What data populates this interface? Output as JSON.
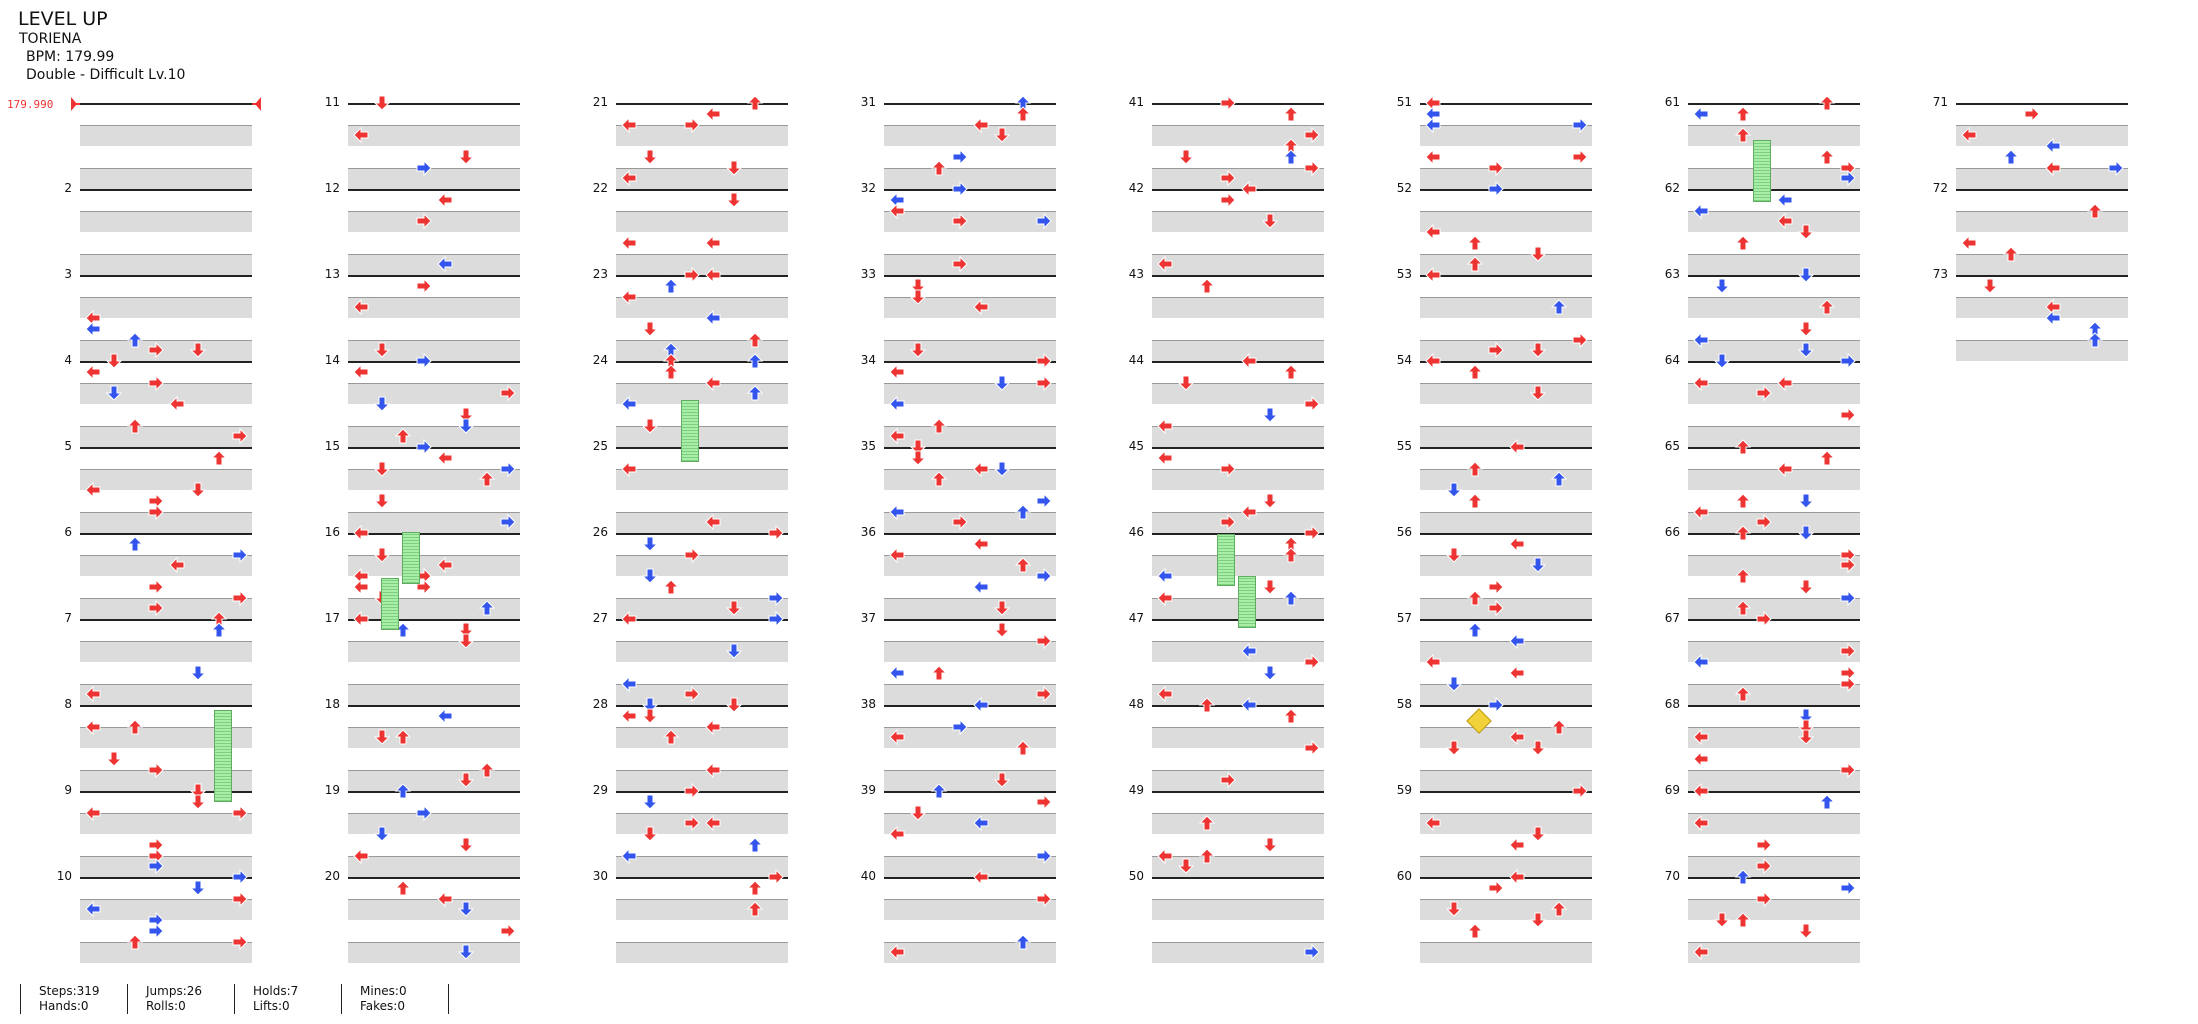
{
  "header": {
    "title": "LEVEL UP",
    "artist": "TORIENA",
    "bpm": "BPM: 179.99",
    "difficulty": "Double - Difficult Lv.10"
  },
  "bpm_marker": "179.990",
  "colors": {
    "red": "#ee3333",
    "blue": "#3355ee",
    "hold": "#9be89b",
    "mine": "#f2d23a"
  },
  "columns": [
    {
      "measures": [
        "",
        "2",
        "3",
        "4",
        "5",
        "6",
        "7",
        "8",
        "9",
        "10"
      ]
    },
    {
      "measures": [
        "11",
        "12",
        "13",
        "14",
        "15",
        "16",
        "17",
        "18",
        "19",
        "20"
      ]
    },
    {
      "measures": [
        "21",
        "22",
        "23",
        "24",
        "25",
        "26",
        "27",
        "28",
        "29",
        "30"
      ]
    },
    {
      "measures": [
        "31",
        "32",
        "33",
        "34",
        "35",
        "36",
        "37",
        "38",
        "39",
        "40"
      ]
    },
    {
      "measures": [
        "41",
        "42",
        "43",
        "44",
        "45",
        "46",
        "47",
        "48",
        "49",
        "50"
      ]
    },
    {
      "measures": [
        "51",
        "52",
        "53",
        "54",
        "55",
        "56",
        "57",
        "58",
        "59",
        "60"
      ]
    },
    {
      "measures": [
        "61",
        "62",
        "63",
        "64",
        "65",
        "66",
        "67",
        "68",
        "69",
        "70"
      ]
    },
    {
      "measures": [
        "71",
        "72",
        "73"
      ]
    }
  ],
  "stats": {
    "steps": "Steps:319",
    "hands": "Hands:0",
    "jumps": "Jumps:26",
    "rolls": "Rolls:0",
    "holds": "Holds:7",
    "lifts": "Lifts:0",
    "mines": "Mines:0",
    "fakes": "Fakes:0"
  }
}
